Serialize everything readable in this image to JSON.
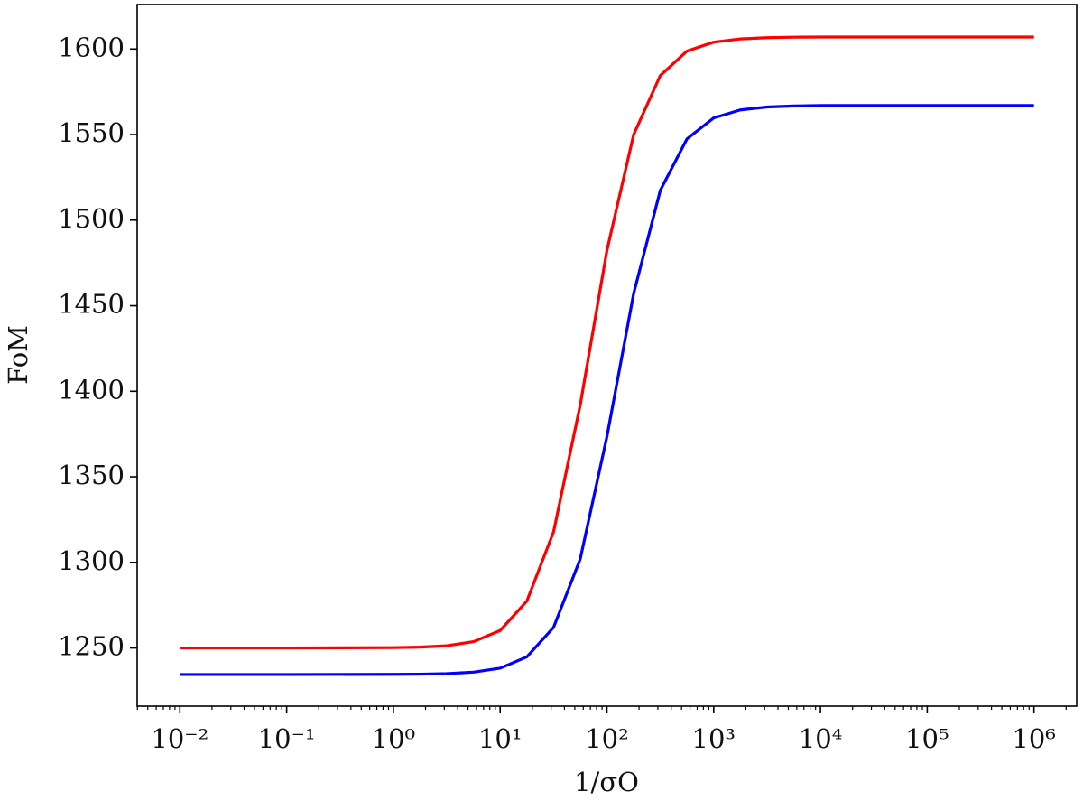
{
  "chart_data": {
    "type": "line",
    "x_label": "1/σO",
    "y_label": "FoM",
    "x": [
      0.01,
      0.1,
      1,
      1.778,
      3.162,
      5.623,
      10,
      17.78,
      31.62,
      56.23,
      100,
      177.8,
      316.2,
      562.3,
      1000,
      1778,
      3162,
      5623,
      10000,
      100000,
      1000000
    ],
    "series": [
      {
        "color": "#ff0000",
        "values": [
          1250,
          1250,
          1250.2,
          1250.5,
          1251.3,
          1253.7,
          1260.2,
          1277.4,
          1317.8,
          1392.0,
          1482.3,
          1549.9,
          1584.5,
          1598.8,
          1604.0,
          1605.9,
          1606.6,
          1606.9,
          1607,
          1607,
          1607
        ]
      },
      {
        "color": "#0000ff",
        "values": [
          1234.5,
          1234.5,
          1234.6,
          1234.7,
          1235.0,
          1235.9,
          1238.2,
          1244.8,
          1262.0,
          1302.0,
          1373.5,
          1457.0,
          1517.4,
          1547.5,
          1559.7,
          1564.4,
          1566.1,
          1566.7,
          1567,
          1567,
          1567
        ]
      }
    ],
    "x_log": true,
    "minor_ticks": true,
    "xlim": [
      0.003981,
      2511886
    ],
    "ylim": [
      1216,
      1626
    ],
    "xticks": [
      {
        "value": 0.01,
        "label": "10⁻²"
      },
      {
        "value": 0.1,
        "label": "10⁻¹"
      },
      {
        "value": 1,
        "label": "10⁰"
      },
      {
        "value": 10,
        "label": "10¹"
      },
      {
        "value": 100,
        "label": "10²"
      },
      {
        "value": 1000,
        "label": "10³"
      },
      {
        "value": 10000,
        "label": "10⁴"
      },
      {
        "value": 100000,
        "label": "10⁵"
      },
      {
        "value": 1000000,
        "label": "10⁶"
      }
    ],
    "yticks": [
      1250,
      1300,
      1350,
      1400,
      1450,
      1500,
      1550,
      1600
    ]
  }
}
